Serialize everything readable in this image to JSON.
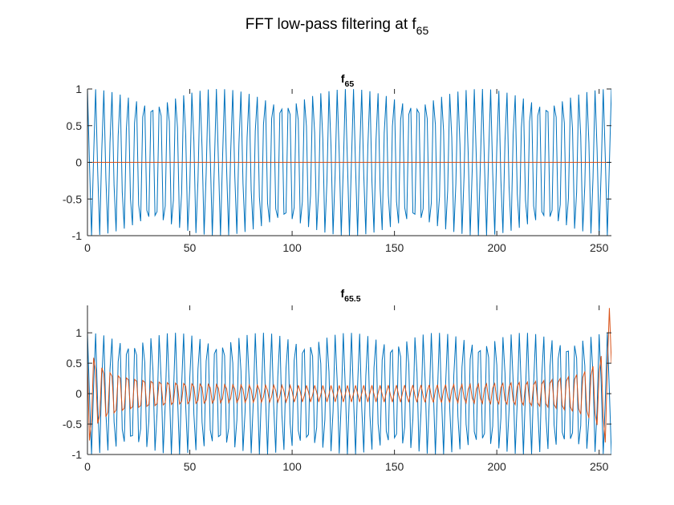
{
  "figure": {
    "suptitle_main": "FFT low-pass filtering at f",
    "suptitle_sub": "65"
  },
  "colors": {
    "original": "#0072BD",
    "filtered": "#D95319",
    "axes": "#262626"
  },
  "chart_data": [
    {
      "type": "line",
      "title_main": "f",
      "title_sub": "65",
      "xlim": [
        0,
        256
      ],
      "ylim": [
        -1,
        1
      ],
      "xticks": [
        0,
        50,
        100,
        150,
        200,
        250
      ],
      "xticklabels": [
        "0",
        "50",
        "100",
        "150",
        "200",
        "250"
      ],
      "yticks": [
        -1,
        -0.5,
        0,
        0.5,
        1
      ],
      "yticklabels": [
        "-1",
        "-0.5",
        "0",
        "0.5",
        "1"
      ],
      "grid": false,
      "n_samples": 256,
      "series": [
        {
          "color_key": "original",
          "cycles": 65
        },
        {
          "color_key": "filtered",
          "constant": 0
        }
      ]
    },
    {
      "type": "line",
      "title_main": "f",
      "title_sub": "65.5",
      "xlim": [
        0,
        256
      ],
      "ylim": [
        -1,
        1.45
      ],
      "xticks": [
        0,
        50,
        100,
        150,
        200,
        250
      ],
      "xticklabels": [
        "0",
        "50",
        "100",
        "150",
        "200",
        "250"
      ],
      "yticks": [
        -1,
        -0.5,
        0,
        0.5,
        1
      ],
      "yticklabels": [
        "-1",
        "-0.5",
        "0",
        "0.5",
        "1"
      ],
      "grid": false,
      "n_samples": 256,
      "series": [
        {
          "color_key": "original",
          "cycles": 65.5
        },
        {
          "color_key": "filtered",
          "cycles": 65.5,
          "lowpass_cutoff": 65
        }
      ]
    }
  ]
}
